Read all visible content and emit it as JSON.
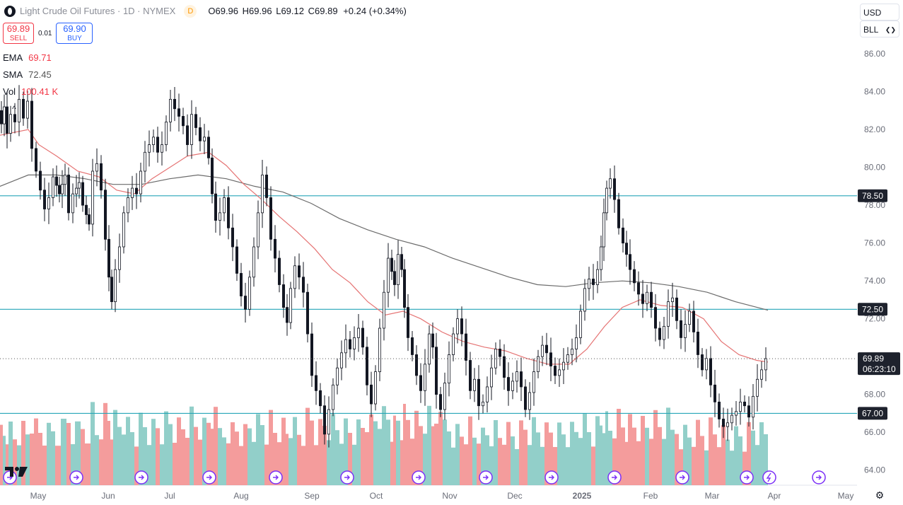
{
  "header": {
    "title": "Light Crude Oil Futures · 1D · NYMEX",
    "badge": "D",
    "ohlc": {
      "o_label": "O",
      "o": "69.96",
      "h_label": "H",
      "h": "69.96",
      "l_label": "L",
      "l": "69.12",
      "c_label": "C",
      "c": "69.89",
      "change": "+0.24 (+0.34%)"
    }
  },
  "trade": {
    "sell_price": "69.89",
    "sell_label": "SELL",
    "spread": "0.01",
    "buy_price": "69.90",
    "buy_label": "BUY"
  },
  "indicators": [
    {
      "name": "EMA",
      "value": "69.71"
    },
    {
      "name": "SMA",
      "value": "72.45"
    },
    {
      "name": "Vol",
      "value": "100.41 K"
    }
  ],
  "toolbar": {
    "currency": "USD",
    "unit": "BLL",
    "settings_icon": "gear-icon",
    "collapse_icon": "chevron-up-icon",
    "logo": "tradingview-logo"
  },
  "colors": {
    "up": "#131722",
    "down": "#131722",
    "ema": "#e57373",
    "sma": "#6b6b6b",
    "hline": "#26a6b8",
    "vol_up": "#7fc7bf",
    "vol_down": "#f28b8b",
    "tag_bg": "#1e222d"
  },
  "chart_data": {
    "type": "candlestick",
    "instrument": "Light Crude Oil Futures",
    "y_ticks": [
      "86.00",
      "84.00",
      "82.00",
      "80.00",
      "78.00",
      "76.00",
      "74.00",
      "72.00",
      "70.00",
      "68.00",
      "66.00",
      "64.00"
    ],
    "ylim": [
      63.2,
      86.8
    ],
    "x_labels": [
      "May",
      "Jun",
      "Jul",
      "Aug",
      "Sep",
      "Oct",
      "Nov",
      "Dec",
      "2025",
      "Feb",
      "Mar",
      "Apr",
      "May"
    ],
    "horizontal_lines": [
      {
        "label": "78.50",
        "value": 78.5
      },
      {
        "label": "72.50",
        "value": 72.5
      },
      {
        "label": "67.00",
        "value": 67.0
      }
    ],
    "last_price": {
      "label": "69.89",
      "countdown": "06:23:10",
      "value": 69.89
    },
    "price_path": [
      [
        0,
        83.0
      ],
      [
        4,
        82.3
      ],
      [
        8,
        83.2
      ],
      [
        12,
        81.8
      ],
      [
        18,
        82.8
      ],
      [
        24,
        82.4
      ],
      [
        30,
        83.6
      ],
      [
        36,
        82.6
      ],
      [
        42,
        83.5
      ],
      [
        48,
        81.0
      ],
      [
        54,
        79.8
      ],
      [
        60,
        78.8
      ],
      [
        66,
        77.8
      ],
      [
        72,
        78.4
      ],
      [
        78,
        79.5
      ],
      [
        86,
        78.6
      ],
      [
        94,
        79.6
      ],
      [
        100,
        77.6
      ],
      [
        106,
        78.6
      ],
      [
        114,
        79.2
      ],
      [
        120,
        78.0
      ],
      [
        128,
        77.0
      ],
      [
        134,
        79.8
      ],
      [
        140,
        80.2
      ],
      [
        146,
        78.8
      ],
      [
        152,
        76.2
      ],
      [
        156,
        74.2
      ],
      [
        160,
        72.9
      ],
      [
        166,
        74.6
      ],
      [
        172,
        75.8
      ],
      [
        178,
        77.6
      ],
      [
        184,
        78.4
      ],
      [
        190,
        78.9
      ],
      [
        196,
        78.6
      ],
      [
        202,
        79.8
      ],
      [
        208,
        80.8
      ],
      [
        214,
        81.2
      ],
      [
        220,
        81.6
      ],
      [
        226,
        80.8
      ],
      [
        232,
        81.2
      ],
      [
        238,
        82.4
      ],
      [
        244,
        83.6
      ],
      [
        250,
        83.1
      ],
      [
        256,
        82.7
      ],
      [
        262,
        82.2
      ],
      [
        268,
        81.2
      ],
      [
        274,
        82.8
      ],
      [
        280,
        82.1
      ],
      [
        286,
        81.4
      ],
      [
        292,
        81.6
      ],
      [
        298,
        80.5
      ],
      [
        302,
        78.6
      ],
      [
        308,
        77.2
      ],
      [
        314,
        77.6
      ],
      [
        320,
        78.4
      ],
      [
        326,
        76.8
      ],
      [
        332,
        75.8
      ],
      [
        338,
        74.4
      ],
      [
        344,
        73.2
      ],
      [
        350,
        72.5
      ],
      [
        356,
        74.2
      ],
      [
        362,
        75.8
      ],
      [
        368,
        77.6
      ],
      [
        374,
        79.6
      ],
      [
        380,
        78.4
      ],
      [
        386,
        76.2
      ],
      [
        392,
        75.2
      ],
      [
        398,
        73.8
      ],
      [
        404,
        72.6
      ],
      [
        408,
        71.8
      ],
      [
        414,
        73.6
      ],
      [
        420,
        74.8
      ],
      [
        426,
        74.2
      ],
      [
        432,
        73.4
      ],
      [
        438,
        71.2
      ],
      [
        444,
        69.0
      ],
      [
        450,
        68.2
      ],
      [
        456,
        67.4
      ],
      [
        462,
        65.9
      ],
      [
        468,
        67.2
      ],
      [
        474,
        68.5
      ],
      [
        480,
        69.4
      ],
      [
        486,
        70.2
      ],
      [
        492,
        70.9
      ],
      [
        498,
        70.4
      ],
      [
        504,
        71.0
      ],
      [
        510,
        71.5
      ],
      [
        516,
        70.5
      ],
      [
        522,
        68.5
      ],
      [
        528,
        67.5
      ],
      [
        534,
        69.2
      ],
      [
        540,
        71.5
      ],
      [
        546,
        73.4
      ],
      [
        552,
        75.2
      ],
      [
        556,
        74.5
      ],
      [
        560,
        73.8
      ],
      [
        566,
        75.4
      ],
      [
        570,
        74.6
      ],
      [
        574,
        72.6
      ],
      [
        580,
        71.0
      ],
      [
        586,
        70.1
      ],
      [
        592,
        69.0
      ],
      [
        598,
        68.2
      ],
      [
        604,
        69.6
      ],
      [
        610,
        71.2
      ],
      [
        614,
        70.5
      ],
      [
        620,
        68.0
      ],
      [
        626,
        67.2
      ],
      [
        632,
        68.6
      ],
      [
        638,
        70.1
      ],
      [
        644,
        71.2
      ],
      [
        650,
        72.0
      ],
      [
        656,
        71.2
      ],
      [
        662,
        69.8
      ],
      [
        668,
        68.2
      ],
      [
        674,
        68.8
      ],
      [
        680,
        67.4
      ],
      [
        686,
        67.6
      ],
      [
        692,
        68.4
      ],
      [
        698,
        69.4
      ],
      [
        704,
        70.4
      ],
      [
        710,
        70.0
      ],
      [
        716,
        68.9
      ],
      [
        722,
        68.2
      ],
      [
        728,
        68.7
      ],
      [
        734,
        69.2
      ],
      [
        740,
        68.4
      ],
      [
        746,
        67.2
      ],
      [
        752,
        68.1
      ],
      [
        758,
        69.2
      ],
      [
        764,
        70.0
      ],
      [
        770,
        70.6
      ],
      [
        776,
        70.2
      ],
      [
        782,
        69.5
      ],
      [
        788,
        69.0
      ],
      [
        794,
        69.3
      ],
      [
        800,
        69.7
      ],
      [
        806,
        70.1
      ],
      [
        812,
        70.4
      ],
      [
        818,
        71.0
      ],
      [
        824,
        72.4
      ],
      [
        830,
        73.6
      ],
      [
        836,
        74.1
      ],
      [
        842,
        73.8
      ],
      [
        848,
        74.6
      ],
      [
        852,
        75.8
      ],
      [
        856,
        77.6
      ],
      [
        860,
        78.9
      ],
      [
        866,
        79.4
      ],
      [
        872,
        78.3
      ],
      [
        878,
        76.8
      ],
      [
        884,
        76.0
      ],
      [
        888,
        75.4
      ],
      [
        894,
        74.6
      ],
      [
        900,
        73.9
      ],
      [
        906,
        73.3
      ],
      [
        912,
        72.8
      ],
      [
        918,
        73.4
      ],
      [
        924,
        72.6
      ],
      [
        930,
        71.5
      ],
      [
        936,
        70.9
      ],
      [
        942,
        71.6
      ],
      [
        948,
        72.9
      ],
      [
        954,
        73.1
      ],
      [
        960,
        71.9
      ],
      [
        966,
        71.0
      ],
      [
        972,
        71.7
      ],
      [
        978,
        72.4
      ],
      [
        984,
        71.3
      ],
      [
        990,
        70.1
      ],
      [
        996,
        69.3
      ],
      [
        1002,
        69.9
      ],
      [
        1008,
        68.5
      ],
      [
        1014,
        67.6
      ],
      [
        1020,
        66.7
      ],
      [
        1026,
        66.3
      ],
      [
        1032,
        66.5
      ],
      [
        1038,
        66.9
      ],
      [
        1044,
        67.1
      ],
      [
        1050,
        67.6
      ],
      [
        1056,
        67.4
      ],
      [
        1062,
        66.8
      ],
      [
        1068,
        67.9
      ],
      [
        1074,
        68.8
      ],
      [
        1080,
        69.3
      ],
      [
        1086,
        69.89
      ]
    ],
    "ema_path": [
      [
        0,
        81.7
      ],
      [
        40,
        82.0
      ],
      [
        55,
        81.2
      ],
      [
        80,
        80.6
      ],
      [
        110,
        79.8
      ],
      [
        140,
        79.5
      ],
      [
        165,
        78.8
      ],
      [
        190,
        78.6
      ],
      [
        215,
        79.4
      ],
      [
        240,
        80.0
      ],
      [
        265,
        80.6
      ],
      [
        295,
        80.8
      ],
      [
        320,
        80.1
      ],
      [
        345,
        79.1
      ],
      [
        370,
        78.3
      ],
      [
        395,
        77.4
      ],
      [
        420,
        76.6
      ],
      [
        445,
        75.7
      ],
      [
        470,
        74.6
      ],
      [
        495,
        73.9
      ],
      [
        520,
        72.9
      ],
      [
        545,
        72.2
      ],
      [
        570,
        72.4
      ],
      [
        595,
        72.0
      ],
      [
        625,
        71.3
      ],
      [
        655,
        70.8
      ],
      [
        685,
        70.5
      ],
      [
        715,
        70.3
      ],
      [
        745,
        69.9
      ],
      [
        775,
        69.6
      ],
      [
        805,
        69.6
      ],
      [
        830,
        70.4
      ],
      [
        855,
        71.6
      ],
      [
        880,
        72.6
      ],
      [
        905,
        73.0
      ],
      [
        935,
        72.7
      ],
      [
        965,
        72.6
      ],
      [
        995,
        72.0
      ],
      [
        1020,
        70.8
      ],
      [
        1045,
        70.1
      ],
      [
        1070,
        69.8
      ],
      [
        1086,
        69.71
      ]
    ],
    "sma_path": [
      [
        0,
        79.0
      ],
      [
        40,
        79.6
      ],
      [
        80,
        79.6
      ],
      [
        120,
        79.4
      ],
      [
        160,
        79.1
      ],
      [
        200,
        79.1
      ],
      [
        240,
        79.4
      ],
      [
        280,
        79.6
      ],
      [
        320,
        79.4
      ],
      [
        360,
        79.0
      ],
      [
        400,
        78.7
      ],
      [
        440,
        78.1
      ],
      [
        480,
        77.3
      ],
      [
        520,
        76.7
      ],
      [
        560,
        76.2
      ],
      [
        600,
        75.8
      ],
      [
        640,
        75.2
      ],
      [
        680,
        74.7
      ],
      [
        720,
        74.2
      ],
      [
        760,
        73.8
      ],
      [
        800,
        73.7
      ],
      [
        840,
        73.9
      ],
      [
        880,
        74.0
      ],
      [
        920,
        73.9
      ],
      [
        960,
        73.7
      ],
      [
        1000,
        73.4
      ],
      [
        1040,
        72.9
      ],
      [
        1086,
        72.45
      ]
    ],
    "x_pixel_unit": "index"
  }
}
